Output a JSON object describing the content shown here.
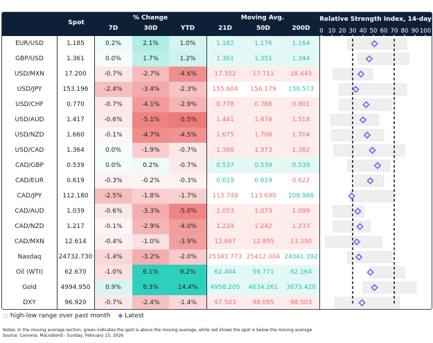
{
  "header": {
    "spot": "Spot",
    "pct_change": "% Change",
    "d7": "7D",
    "d30": "30D",
    "ytd": "YTD",
    "moving_avg": "Moving Avg.",
    "ma21": "21D",
    "ma50": "50D",
    "ma200": "200D",
    "rsi_title": "Relative Strength Index, 14-day"
  },
  "colors": {
    "header_bg": "#0e1f38",
    "green": "#2fcfbd",
    "red": "#ee8080",
    "ma_green": "#1fc3ad",
    "ma_red": "#ef6a6a",
    "range_bar": "#efefef",
    "latest_marker": "#8d72e8"
  },
  "chart_data": {
    "type": "table",
    "rsi_axis": {
      "range": [
        0,
        100
      ],
      "ticks": [
        0,
        10,
        20,
        30,
        40,
        50,
        60,
        70,
        80,
        90,
        100
      ],
      "thresholds": [
        30,
        70
      ]
    },
    "rows": [
      {
        "name": "EUR/USD",
        "spot": "1.185",
        "d7": "0.2%",
        "d30": "2.1%",
        "ytd": "1.0%",
        "ma21": "1.182",
        "ma50": "1.176",
        "ma200": "1.164",
        "rsi_low": 25,
        "rsi_high": 82,
        "rsi": 51
      },
      {
        "name": "GBP/USD",
        "spot": "1.361",
        "d7": "0.0%",
        "d30": "1.7%",
        "ytd": "1.2%",
        "ma21": "1.361",
        "ma50": "1.351",
        "ma200": "1.344",
        "rsi_low": 35,
        "rsi_high": 84,
        "rsi": 46
      },
      {
        "name": "USD/MXN",
        "spot": "17.200",
        "d7": "-0.7%",
        "d30": "-2.7%",
        "ytd": "-4.6%",
        "ma21": "17.352",
        "ma50": "17.711",
        "ma200": "18.445",
        "rsi_low": 11,
        "rsi_high": 49,
        "rsi": 38
      },
      {
        "name": "USD/JPY",
        "spot": "153.196",
        "d7": "-2.4%",
        "d30": "-3.4%",
        "ytd": "-2.3%",
        "ma21": "155.604",
        "ma50": "156.179",
        "ma200": "150.573",
        "rsi_low": 17,
        "rsi_high": 82,
        "rsi": 33
      },
      {
        "name": "USD/CHF",
        "spot": "0.770",
        "d7": "-0.7%",
        "d30": "-4.1%",
        "ytd": "-2.9%",
        "ma21": "0.778",
        "ma50": "0.788",
        "ma200": "0.801",
        "rsi_low": 17,
        "rsi_high": 67,
        "rsi": 43
      },
      {
        "name": "USD/AUD",
        "spot": "1.417",
        "d7": "-0.6%",
        "d30": "-5.1%",
        "ytd": "-5.5%",
        "ma21": "1.441",
        "ma50": "1.474",
        "ma200": "1.518",
        "rsi_low": 9,
        "rsi_high": 55,
        "rsi": 40
      },
      {
        "name": "USD/NZD",
        "spot": "1.660",
        "d7": "-0.1%",
        "d30": "-4.7%",
        "ytd": "-4.5%",
        "ma21": "1.675",
        "ma50": "1.706",
        "ma200": "1.704",
        "rsi_low": 10,
        "rsi_high": 60,
        "rsi": 44
      },
      {
        "name": "USD/CAD",
        "spot": "1.364",
        "d7": "0.0%",
        "d30": "-1.9%",
        "ytd": "-0.7%",
        "ma21": "1.368",
        "ma50": "1.373",
        "ma200": "1.382",
        "rsi_low": 12,
        "rsi_high": 80,
        "rsi": 49
      },
      {
        "name": "CAD/GBP",
        "spot": "0.539",
        "d7": "0.0%",
        "d30": "0.2%",
        "ytd": "-0.7%",
        "ma21": "0.537",
        "ma50": "0.539",
        "ma200": "0.539",
        "rsi_low": 25,
        "rsi_high": 66,
        "rsi": 54
      },
      {
        "name": "CAD/EUR",
        "spot": "0.619",
        "d7": "-0.3%",
        "d30": "-0.2%",
        "ytd": "-0.3%",
        "ma21": "0.619",
        "ma50": "0.619",
        "ma200": "0.622",
        "rsi_low": 32,
        "rsi_high": 60,
        "rsi": 47
      },
      {
        "name": "CAD/JPY",
        "spot": "112.180",
        "d7": "-2.5%",
        "d30": "-1.8%",
        "ytd": "-1.7%",
        "ma21": "113.749",
        "ma50": "113.690",
        "ma200": "108.988",
        "rsi_low": 28,
        "rsi_high": 69,
        "rsi": 29
      },
      {
        "name": "CAD/AUD",
        "spot": "1.039",
        "d7": "-0.6%",
        "d30": "-3.3%",
        "ytd": "-5.0%",
        "ma21": "1.053",
        "ma50": "1.073",
        "ma200": "1.099",
        "rsi_low": 11,
        "rsi_high": 41,
        "rsi": 35
      },
      {
        "name": "CAD/NZD",
        "spot": "1.217",
        "d7": "-0.1%",
        "d30": "-2.9%",
        "ytd": "-4.0%",
        "ma21": "1.224",
        "ma50": "1.242",
        "ma200": "1.233",
        "rsi_low": 11,
        "rsi_high": 47,
        "rsi": 37
      },
      {
        "name": "CAD/MXN",
        "spot": "12.614",
        "d7": "-0.4%",
        "d30": "-1.0%",
        "ytd": "-3.9%",
        "ma21": "12.687",
        "ma50": "12.895",
        "ma200": "13.350",
        "rsi_low": 4,
        "rsi_high": 58,
        "rsi": 34
      },
      {
        "name": "Nasdaq",
        "spot": "24732.730",
        "d7": "-1.4%",
        "d30": "-3.2%",
        "ytd": "-2.0%",
        "ma21": "25343.773",
        "ma50": "25412.004",
        "ma200": "24041.392",
        "rsi_low": 25,
        "rsi_high": 68,
        "rsi": 36
      },
      {
        "name": "Oil (WTI)",
        "spot": "62.670",
        "d7": "-1.0%",
        "d30": "6.1%",
        "ytd": "9.2%",
        "ma21": "62.404",
        "ma50": "59.771",
        "ma200": "62.164",
        "rsi_low": 47,
        "rsi_high": 80,
        "rsi": 47
      },
      {
        "name": "Gold",
        "spot": "4994.950",
        "d7": "0.9%",
        "d30": "8.3%",
        "ytd": "14.4%",
        "ma21": "4958.205",
        "ma50": "4634.261",
        "ma200": "3875.420",
        "rsi_low": 40,
        "rsi_high": 91,
        "rsi": 51
      },
      {
        "name": "DXY",
        "spot": "96.920",
        "d7": "-0.7%",
        "d30": "-2.4%",
        "ytd": "-1.4%",
        "ma21": "97.503",
        "ma50": "98.095",
        "ma200": "98.503",
        "rsi_low": 13,
        "rsi_high": 75,
        "rsi": 39
      }
    ]
  },
  "legend": {
    "range": "high-low range over past month",
    "latest": "Latest"
  },
  "notes": "Notes: In the moving average section, green indicates the spot is above the moving average, while red shows the spot is below the moving average",
  "source": "Source: Convera, Macrobond - Sunday, February 15, 2026"
}
